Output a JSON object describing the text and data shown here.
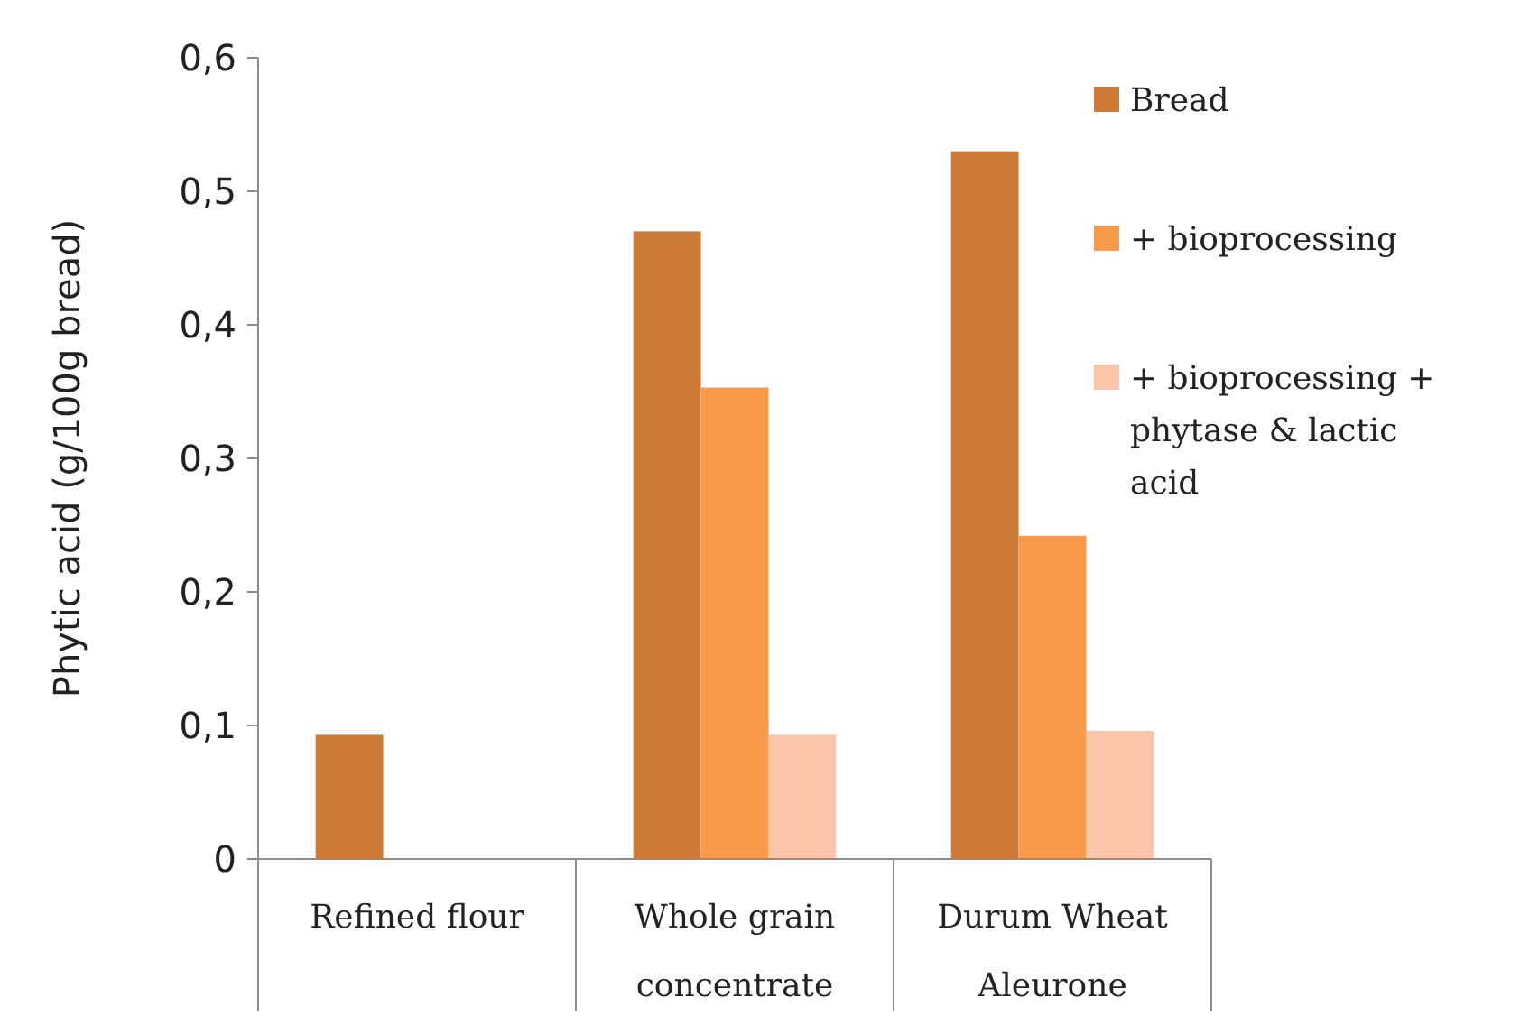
{
  "chart_data": {
    "type": "bar",
    "ylabel": "Phytic acid (g/100g bread)",
    "categories": [
      "Refined flour",
      "Whole grain concentrate",
      "Durum Wheat Aleurone"
    ],
    "series": [
      {
        "name": "Bread",
        "color": "#cd7b37",
        "values": [
          0.093,
          0.47,
          0.53
        ]
      },
      {
        "name": "+ bioprocessing",
        "color": "#f79a4c",
        "values": [
          null,
          0.353,
          0.242
        ]
      },
      {
        "name": "+ bioprocessing + phytase & lactic acid",
        "color": "#fac5a8",
        "values": [
          null,
          0.093,
          0.096
        ]
      }
    ],
    "ylim": [
      0,
      0.6
    ],
    "yticks": [
      {
        "value": 0,
        "label": "0"
      },
      {
        "value": 0.1,
        "label": "0,1"
      },
      {
        "value": 0.2,
        "label": "0,2"
      },
      {
        "value": 0.3,
        "label": "0,3"
      },
      {
        "value": 0.4,
        "label": "0,4"
      },
      {
        "value": 0.5,
        "label": "0,5"
      },
      {
        "value": 0.6,
        "label": "0,6"
      }
    ],
    "grid": false,
    "legend": "top right"
  }
}
